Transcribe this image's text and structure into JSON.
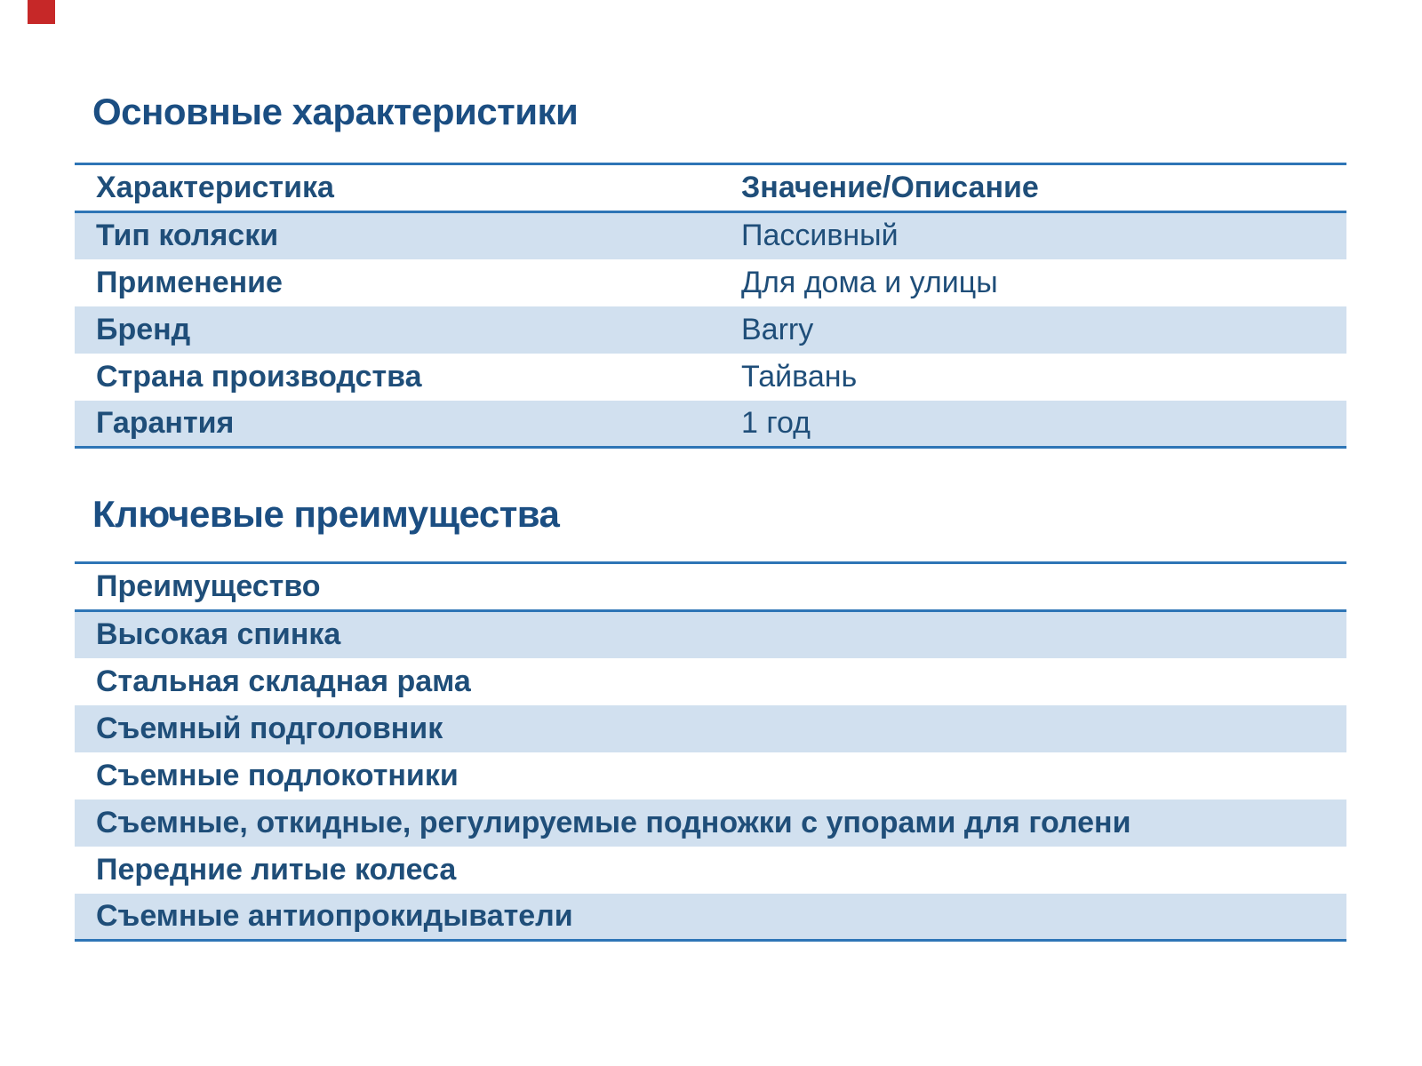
{
  "colors": {
    "heading_text": "#1b4e82",
    "table_text": "#1f4e79",
    "rule_blue": "#2e75b6",
    "band_blue": "#d1e0ef",
    "corner_mark_red": "#c62828",
    "page_background": "#ffffff"
  },
  "section1": {
    "title": "Основные характеристики",
    "table": {
      "headers": [
        "Характеристика",
        "Значение/Описание"
      ],
      "rows": [
        {
          "name": "Тип коляски",
          "value": "Пассивный"
        },
        {
          "name": "Применение",
          "value": "Для дома и улицы"
        },
        {
          "name": "Бренд",
          "value": "Barry"
        },
        {
          "name": "Страна производства",
          "value": "Тайвань"
        },
        {
          "name": "Гарантия",
          "value": "1 год"
        }
      ]
    }
  },
  "section2": {
    "title": "Ключевые преимущества",
    "table": {
      "headers": [
        "Преимущество"
      ],
      "rows": [
        "Высокая спинка",
        "Стальная складная рама",
        "Съемный подголовник",
        "Съемные подлокотники",
        "Съемные, откидные, регулируемые подножки с упорами для голени",
        "Передние литые колеса",
        "Съемные антиопрокидыватели"
      ]
    }
  }
}
